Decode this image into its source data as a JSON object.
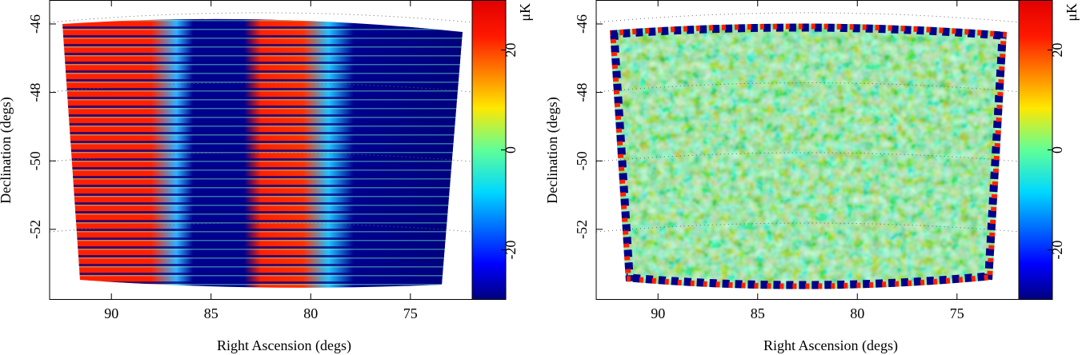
{
  "chart_data": [
    {
      "type": "map",
      "xlabel": "Right Ascension (degs)",
      "ylabel": "Declination (degs)",
      "xlim": [
        93.1,
        71.9
      ],
      "ylim": [
        -54.06,
        -45.3
      ],
      "xticks": [
        90,
        85,
        80,
        75
      ],
      "yticks": [
        -46,
        -48,
        -50,
        -52
      ],
      "colorbar": {
        "label": "μK",
        "lim": [
          -30,
          30
        ],
        "ticks": [
          -20,
          0,
          20
        ]
      }
    },
    {
      "type": "map",
      "xlabel": "Right Ascension (degs)",
      "ylabel": "Declination (degs)",
      "xlim": [
        93.1,
        71.9
      ],
      "ylim": [
        -54.06,
        -45.3
      ],
      "xticks": [
        90,
        85,
        80,
        75
      ],
      "yticks": [
        -46,
        -48,
        -50,
        -52
      ],
      "colorbar": {
        "label": "μK",
        "lim": [
          -30,
          30
        ],
        "ticks": [
          -20,
          0,
          20
        ]
      }
    }
  ]
}
